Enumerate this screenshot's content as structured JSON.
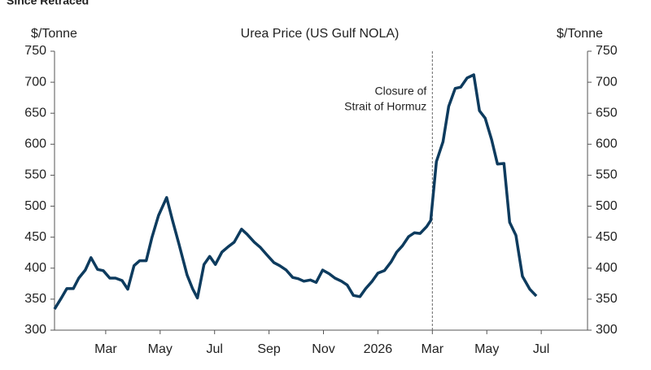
{
  "chart_data": {
    "type": "line",
    "subtitle": "Since Retraced",
    "title": "Urea Price (US Gulf NOLA)",
    "y_label": "$/Tonne",
    "y2_label": "$/Tonne",
    "annotation": [
      "Closure of",
      "Strait of Hormuz"
    ],
    "vline": 14,
    "xlim": [
      0.12,
      19.7
    ],
    "xticks": [
      {
        "value": 2,
        "label": "Mar"
      },
      {
        "value": 4,
        "label": "May"
      },
      {
        "value": 6,
        "label": "Jul"
      },
      {
        "value": 8,
        "label": "Sep"
      },
      {
        "value": 10,
        "label": "Nov"
      },
      {
        "value": 12,
        "label": "2026"
      },
      {
        "value": 14,
        "label": "Mar"
      },
      {
        "value": 16,
        "label": "May"
      },
      {
        "value": 18,
        "label": "Jul"
      }
    ],
    "ylim": [
      300,
      750
    ],
    "yticks": [
      300,
      350,
      400,
      450,
      500,
      550,
      600,
      650,
      700,
      750
    ],
    "y2lim": [
      300,
      750
    ],
    "y2ticks": [
      300,
      350,
      400,
      450,
      500,
      550,
      600,
      650,
      700,
      750
    ],
    "x": [
      0.12,
      0.36,
      0.57,
      0.81,
      1.01,
      1.25,
      1.46,
      1.7,
      1.91,
      2.15,
      2.36,
      2.6,
      2.81,
      3.04,
      3.25,
      3.49,
      3.7,
      3.94,
      4.24,
      4.45,
      4.69,
      4.99,
      5.19,
      5.37,
      5.61,
      5.82,
      6.03,
      6.27,
      6.48,
      6.72,
      6.99,
      7.19,
      7.46,
      7.67,
      7.91,
      8.18,
      8.39,
      8.63,
      8.87,
      9.07,
      9.28,
      9.52,
      9.73,
      9.97,
      10.21,
      10.42,
      10.66,
      10.87,
      11.1,
      11.34,
      11.55,
      11.79,
      12.0,
      12.24,
      12.48,
      12.69,
      12.9,
      13.13,
      13.34,
      13.55,
      13.79,
      13.94,
      14.15,
      14.39,
      14.6,
      14.84,
      15.04,
      15.28,
      15.52,
      15.73,
      15.94,
      16.18,
      16.39,
      16.63,
      16.84,
      17.07,
      17.31,
      17.58,
      17.82
    ],
    "series": [
      {
        "name": "Urea Price",
        "color": "#0d3b5e",
        "values": [
          334,
          351,
          367,
          367,
          384,
          397,
          417,
          398,
          396,
          384,
          384,
          380,
          366,
          404,
          412,
          412,
          450,
          485,
          514,
          478,
          439,
          389,
          367,
          352,
          406,
          419,
          406,
          426,
          434,
          442,
          463,
          455,
          442,
          434,
          422,
          409,
          404,
          397,
          385,
          383,
          379,
          381,
          377,
          397,
          391,
          384,
          379,
          373,
          356,
          354,
          367,
          379,
          392,
          396,
          410,
          426,
          436,
          451,
          457,
          456,
          467,
          477,
          572,
          604,
          661,
          690,
          692,
          707,
          712,
          654,
          642,
          607,
          568,
          569,
          474,
          453,
          387,
          366,
          355
        ]
      }
    ]
  }
}
